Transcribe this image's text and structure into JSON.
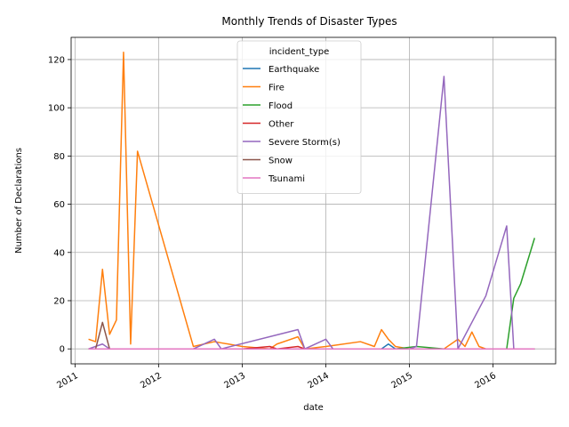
{
  "chart_data": {
    "type": "line",
    "title": "Monthly Trends of Disaster Types",
    "xlabel": "date",
    "ylabel": "Number of Declarations",
    "xlim": [
      "2010-12-15",
      "2016-10-01"
    ],
    "ylim": [
      -6.2,
      129.2
    ],
    "x_ticks": [
      "2011-01-01",
      "2012-01-01",
      "2013-01-01",
      "2014-01-01",
      "2015-01-01",
      "2016-01-01"
    ],
    "x_tick_labels": [
      "2011",
      "2012",
      "2013",
      "2014",
      "2015",
      "2016"
    ],
    "y_ticks": [
      0,
      20,
      40,
      60,
      80,
      100,
      120
    ],
    "y_tick_labels": [
      "0",
      "20",
      "40",
      "60",
      "80",
      "100",
      "120"
    ],
    "grid": true,
    "legend": {
      "title": "incident_type",
      "placement": "top-center"
    },
    "series": [
      {
        "name": "Earthquake",
        "color": "#1f77b4",
        "x": [
          "2011-03-01",
          "2014-09-01",
          "2014-10-01",
          "2014-11-01",
          "2016-07-01"
        ],
        "y": [
          0,
          0,
          2,
          0,
          0
        ]
      },
      {
        "name": "Fire",
        "color": "#ff7f0e",
        "x": [
          "2011-03-01",
          "2011-04-01",
          "2011-05-01",
          "2011-06-01",
          "2011-07-01",
          "2011-08-01",
          "2011-09-01",
          "2011-10-01",
          "2012-06-01",
          "2012-09-01",
          "2013-01-01",
          "2013-05-01",
          "2013-06-01",
          "2013-09-01",
          "2013-10-01",
          "2014-01-01",
          "2014-06-01",
          "2014-08-01",
          "2014-09-01",
          "2014-10-01",
          "2014-11-01",
          "2015-01-01",
          "2015-06-01",
          "2015-08-01",
          "2015-09-01",
          "2015-10-01",
          "2015-11-01",
          "2015-12-01",
          "2016-07-01"
        ],
        "y": [
          4,
          3,
          33,
          6,
          12,
          123,
          2,
          82,
          1,
          3,
          1,
          0,
          2,
          5,
          0,
          1,
          3,
          1,
          8,
          4,
          1,
          0,
          0,
          4,
          1,
          7,
          1,
          0,
          0
        ]
      },
      {
        "name": "Flood",
        "color": "#2ca02c",
        "x": [
          "2011-03-01",
          "2014-11-01",
          "2015-02-01",
          "2015-06-01",
          "2016-03-01",
          "2016-04-01",
          "2016-05-01",
          "2016-07-01"
        ],
        "y": [
          0,
          0,
          1,
          0,
          0,
          21,
          27,
          46
        ]
      },
      {
        "name": "Other",
        "color": "#d62728",
        "x": [
          "2011-03-01",
          "2013-01-01",
          "2013-05-01",
          "2013-06-01",
          "2013-09-01",
          "2013-10-01",
          "2016-07-01"
        ],
        "y": [
          0,
          0,
          1,
          0,
          1,
          0,
          0
        ]
      },
      {
        "name": "Severe Storm(s)",
        "color": "#9467bd",
        "x": [
          "2011-03-01",
          "2011-05-01",
          "2011-06-01",
          "2012-06-01",
          "2012-09-01",
          "2012-10-01",
          "2013-09-01",
          "2013-10-01",
          "2014-01-01",
          "2014-02-01",
          "2015-01-01",
          "2015-02-01",
          "2015-06-01",
          "2015-08-01",
          "2015-12-01",
          "2016-03-01",
          "2016-04-01",
          "2016-07-01"
        ],
        "y": [
          0,
          2,
          0,
          0,
          4,
          0,
          8,
          0,
          4,
          0,
          0,
          1,
          113,
          0,
          22,
          51,
          0,
          0
        ]
      },
      {
        "name": "Snow",
        "color": "#8c564b",
        "x": [
          "2011-03-01",
          "2011-04-01",
          "2011-05-01",
          "2011-06-01",
          "2016-07-01"
        ],
        "y": [
          0,
          0,
          11,
          0,
          0
        ]
      },
      {
        "name": "Tsunami",
        "color": "#e377c2",
        "x": [
          "2011-03-01",
          "2016-07-01"
        ],
        "y": [
          0,
          0
        ]
      }
    ]
  }
}
